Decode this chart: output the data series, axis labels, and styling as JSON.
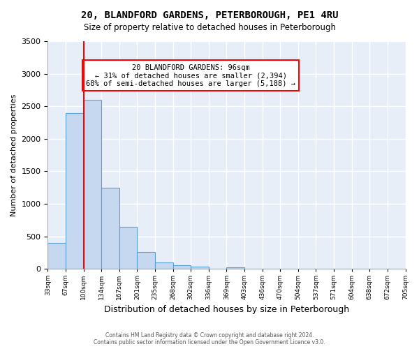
{
  "title": "20, BLANDFORD GARDENS, PETERBOROUGH, PE1 4RU",
  "subtitle": "Size of property relative to detached houses in Peterborough",
  "xlabel": "Distribution of detached houses by size in Peterborough",
  "ylabel": "Number of detached properties",
  "bar_color": "#c5d8f0",
  "bar_edge_color": "#5a9fd4",
  "background_color": "#e8eef8",
  "grid_color": "#ffffff",
  "ylim": [
    0,
    3500
  ],
  "yticks": [
    0,
    500,
    1000,
    1500,
    2000,
    2500,
    3000,
    3500
  ],
  "bin_labels": [
    "33sqm",
    "67sqm",
    "100sqm",
    "134sqm",
    "167sqm",
    "201sqm",
    "235sqm",
    "268sqm",
    "302sqm",
    "336sqm",
    "369sqm",
    "403sqm",
    "436sqm",
    "470sqm",
    "504sqm",
    "537sqm",
    "571sqm",
    "604sqm",
    "638sqm",
    "672sqm",
    "705sqm"
  ],
  "bar_values": [
    400,
    2400,
    2600,
    1250,
    650,
    260,
    100,
    55,
    35,
    0,
    30,
    0,
    0,
    0,
    0,
    0,
    0,
    0,
    0,
    0
  ],
  "annotation_title": "20 BLANDFORD GARDENS: 96sqm",
  "annotation_line1": "← 31% of detached houses are smaller (2,394)",
  "annotation_line2": "68% of semi-detached houses are larger (5,188) →",
  "red_line_bin": 2,
  "footer1": "Contains HM Land Registry data © Crown copyright and database right 2024.",
  "footer2": "Contains public sector information licensed under the Open Government Licence v3.0."
}
